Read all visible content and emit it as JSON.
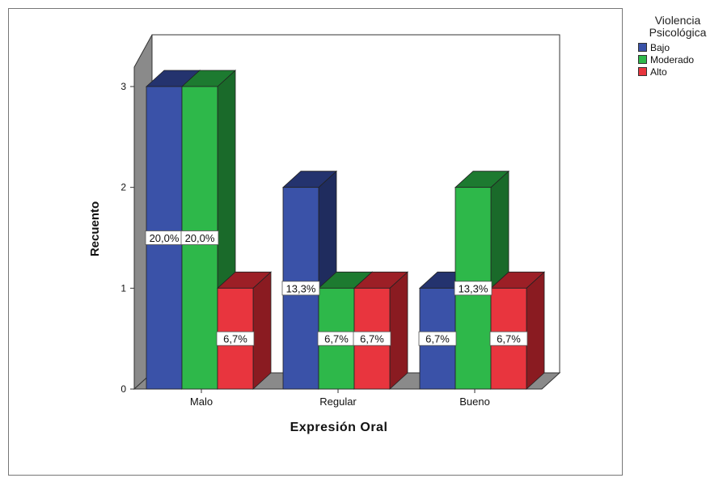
{
  "chart_data": {
    "type": "bar",
    "style": "3d-clustered",
    "categories": [
      "Malo",
      "Regular",
      "Bueno"
    ],
    "series": [
      {
        "name": "Bajo",
        "color": "#3a52a8",
        "top_color": "#24336e",
        "side_color": "#1f2c5e",
        "values": [
          3,
          2,
          1
        ],
        "labels": [
          "20,0%",
          "13,3%",
          "6,7%"
        ]
      },
      {
        "name": "Moderado",
        "color": "#2eb84a",
        "top_color": "#1d7a30",
        "side_color": "#1a6a2a",
        "values": [
          3,
          1,
          2
        ],
        "labels": [
          "20,0%",
          "6,7%",
          "13,3%"
        ]
      },
      {
        "name": "Alto",
        "color": "#e8353e",
        "top_color": "#9c1f26",
        "side_color": "#8a1b21",
        "values": [
          1,
          1,
          1
        ],
        "labels": [
          "6,7%",
          "6,7%",
          "6,7%"
        ]
      }
    ],
    "xlabel": "Expresión Oral",
    "ylabel": "Recuento",
    "yticks": [
      0,
      1,
      2,
      3
    ],
    "ylim": [
      0,
      3
    ],
    "grid": false,
    "legend_position": "right"
  },
  "legend": {
    "title_line1": "Violencia",
    "title_line2": "Psicológica"
  }
}
